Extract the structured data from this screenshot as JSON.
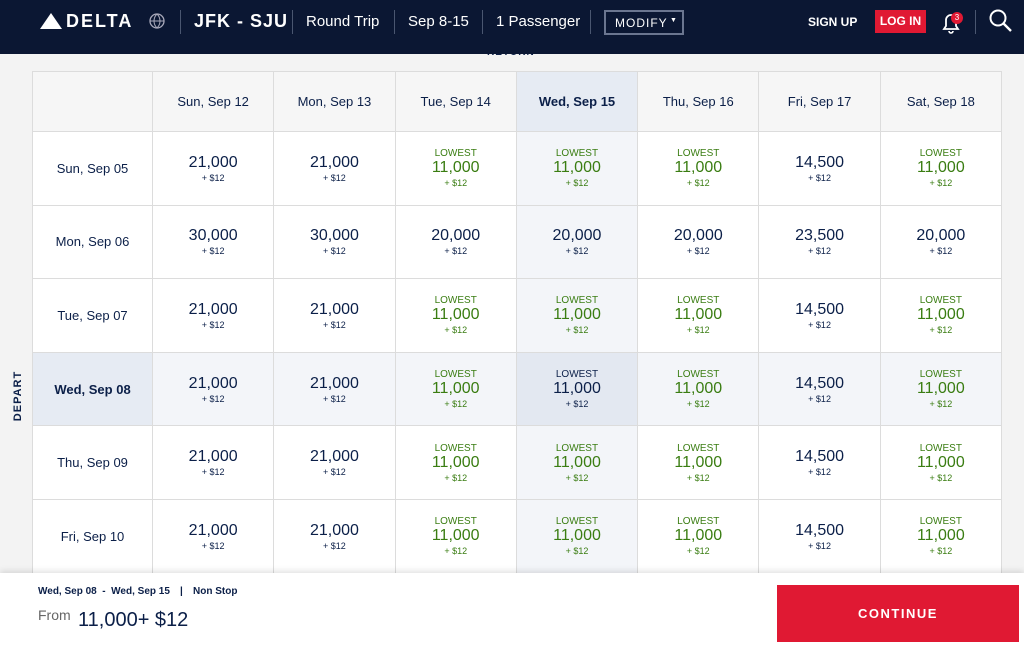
{
  "header": {
    "brand": "DELTA",
    "route": "JFK - SJU",
    "trip": "Round Trip",
    "dates": "Sep 8-15",
    "passengers": "1 Passenger",
    "modify": "MODIFY",
    "sign_up": "SIGN UP",
    "log_in": "LOG IN",
    "notifications": "3"
  },
  "grid": {
    "return_label": "RETURN",
    "depart_label": "DEPART",
    "columns": [
      "Sun, Sep 12",
      "Mon, Sep 13",
      "Tue, Sep 14",
      "Wed, Sep 15",
      "Thu, Sep 16",
      "Fri, Sep 17",
      "Sat, Sep 18"
    ],
    "rows": [
      {
        "label": "Sun, Sep 05",
        "cells": [
          {
            "miles": "21,000",
            "fee": "+ $12"
          },
          {
            "miles": "21,000",
            "fee": "+ $12"
          },
          {
            "tag": "LOWEST",
            "miles": "11,000",
            "fee": "+ $12"
          },
          {
            "tag": "LOWEST",
            "miles": "11,000",
            "fee": "+ $12"
          },
          {
            "tag": "LOWEST",
            "miles": "11,000",
            "fee": "+ $12"
          },
          {
            "miles": "14,500",
            "fee": "+ $12"
          },
          {
            "tag": "LOWEST",
            "miles": "11,000",
            "fee": "+ $12"
          }
        ]
      },
      {
        "label": "Mon, Sep 06",
        "cells": [
          {
            "miles": "30,000",
            "fee": "+ $12"
          },
          {
            "miles": "30,000",
            "fee": "+ $12"
          },
          {
            "miles": "20,000",
            "fee": "+ $12"
          },
          {
            "miles": "20,000",
            "fee": "+ $12"
          },
          {
            "miles": "20,000",
            "fee": "+ $12"
          },
          {
            "miles": "23,500",
            "fee": "+ $12"
          },
          {
            "miles": "20,000",
            "fee": "+ $12"
          }
        ]
      },
      {
        "label": "Tue, Sep 07",
        "cells": [
          {
            "miles": "21,000",
            "fee": "+ $12"
          },
          {
            "miles": "21,000",
            "fee": "+ $12"
          },
          {
            "tag": "LOWEST",
            "miles": "11,000",
            "fee": "+ $12"
          },
          {
            "tag": "LOWEST",
            "miles": "11,000",
            "fee": "+ $12"
          },
          {
            "tag": "LOWEST",
            "miles": "11,000",
            "fee": "+ $12"
          },
          {
            "miles": "14,500",
            "fee": "+ $12"
          },
          {
            "tag": "LOWEST",
            "miles": "11,000",
            "fee": "+ $12"
          }
        ]
      },
      {
        "label": "Wed, Sep 08",
        "cells": [
          {
            "miles": "21,000",
            "fee": "+ $12"
          },
          {
            "miles": "21,000",
            "fee": "+ $12"
          },
          {
            "tag": "LOWEST",
            "miles": "11,000",
            "fee": "+ $12"
          },
          {
            "tag": "LOWEST",
            "miles": "11,000",
            "fee": "+ $12"
          },
          {
            "tag": "LOWEST",
            "miles": "11,000",
            "fee": "+ $12"
          },
          {
            "miles": "14,500",
            "fee": "+ $12"
          },
          {
            "tag": "LOWEST",
            "miles": "11,000",
            "fee": "+ $12"
          }
        ]
      },
      {
        "label": "Thu, Sep 09",
        "cells": [
          {
            "miles": "21,000",
            "fee": "+ $12"
          },
          {
            "miles": "21,000",
            "fee": "+ $12"
          },
          {
            "tag": "LOWEST",
            "miles": "11,000",
            "fee": "+ $12"
          },
          {
            "tag": "LOWEST",
            "miles": "11,000",
            "fee": "+ $12"
          },
          {
            "tag": "LOWEST",
            "miles": "11,000",
            "fee": "+ $12"
          },
          {
            "miles": "14,500",
            "fee": "+ $12"
          },
          {
            "tag": "LOWEST",
            "miles": "11,000",
            "fee": "+ $12"
          }
        ]
      },
      {
        "label": "Fri, Sep 10",
        "cells": [
          {
            "miles": "21,000",
            "fee": "+ $12"
          },
          {
            "miles": "21,000",
            "fee": "+ $12"
          },
          {
            "tag": "LOWEST",
            "miles": "11,000",
            "fee": "+ $12"
          },
          {
            "tag": "LOWEST",
            "miles": "11,000",
            "fee": "+ $12"
          },
          {
            "tag": "LOWEST",
            "miles": "11,000",
            "fee": "+ $12"
          },
          {
            "miles": "14,500",
            "fee": "+ $12"
          },
          {
            "tag": "LOWEST",
            "miles": "11,000",
            "fee": "+ $12"
          }
        ]
      }
    ]
  },
  "footer": {
    "selection": "Wed, Sep 08  -  Wed, Sep 15",
    "separator": "|",
    "stops": "Non Stop",
    "from": "From",
    "price": "11,000+ $12",
    "continue": "CONTINUE"
  }
}
